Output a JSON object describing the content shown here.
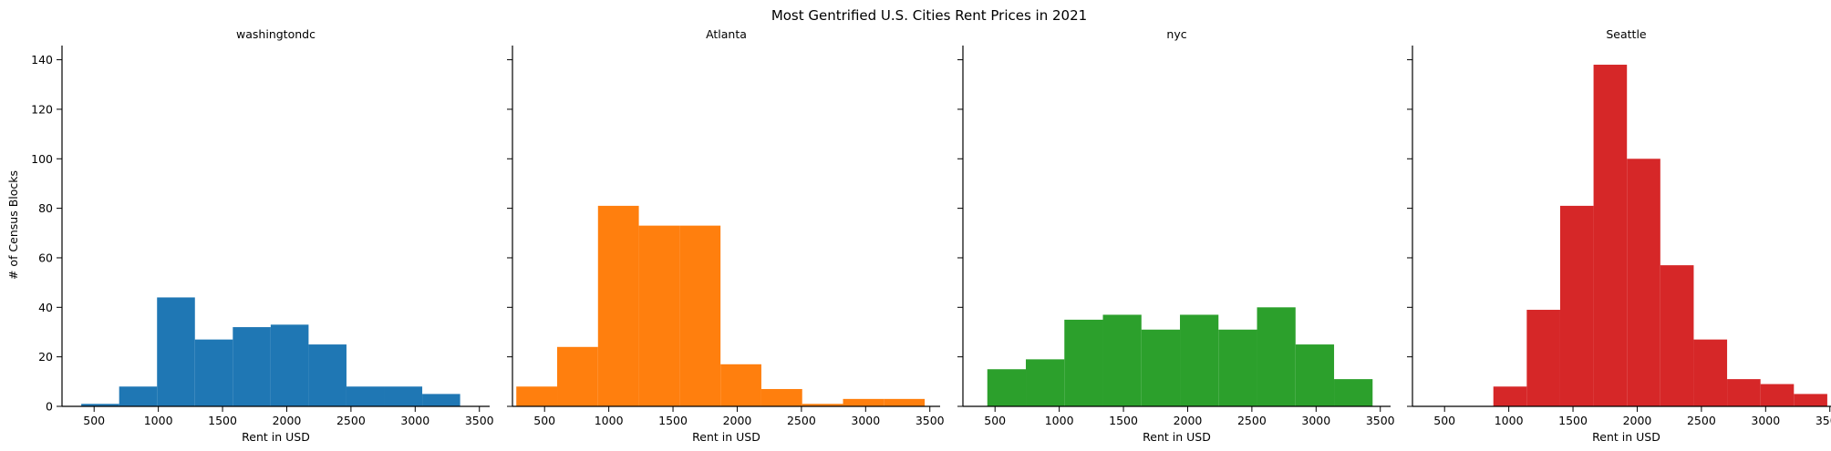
{
  "chart_data": {
    "type": "bar",
    "title": "Most Gentrified U.S. Cities Rent Prices in 2021",
    "xlabel": "Rent in USD",
    "ylabel": "# of Census Blocks",
    "ylim": [
      0,
      145
    ],
    "yticks": [
      0,
      20,
      40,
      60,
      80,
      100,
      120,
      140
    ],
    "xticks": [
      500,
      1000,
      1500,
      2000,
      2500,
      3000,
      3500
    ],
    "xlim": [
      250,
      3580
    ],
    "grid": false,
    "panels": [
      {
        "title": "washingtondc",
        "color": "#1f77b4",
        "bins": [
          {
            "x0": 400,
            "x1": 695,
            "count": 1
          },
          {
            "x0": 695,
            "x1": 990,
            "count": 8
          },
          {
            "x0": 990,
            "x1": 1285,
            "count": 44
          },
          {
            "x0": 1285,
            "x1": 1580,
            "count": 27
          },
          {
            "x0": 1580,
            "x1": 1875,
            "count": 32
          },
          {
            "x0": 1875,
            "x1": 2170,
            "count": 33
          },
          {
            "x0": 2170,
            "x1": 2465,
            "count": 25
          },
          {
            "x0": 2465,
            "x1": 2760,
            "count": 8
          },
          {
            "x0": 2760,
            "x1": 3055,
            "count": 8
          },
          {
            "x0": 3055,
            "x1": 3350,
            "count": 5
          }
        ]
      },
      {
        "title": "Atlanta",
        "color": "#ff7f0e",
        "bins": [
          {
            "x0": 280,
            "x1": 598,
            "count": 8
          },
          {
            "x0": 598,
            "x1": 916,
            "count": 24
          },
          {
            "x0": 916,
            "x1": 1234,
            "count": 81
          },
          {
            "x0": 1234,
            "x1": 1552,
            "count": 73
          },
          {
            "x0": 1552,
            "x1": 1870,
            "count": 73
          },
          {
            "x0": 1870,
            "x1": 2188,
            "count": 17
          },
          {
            "x0": 2188,
            "x1": 2506,
            "count": 7
          },
          {
            "x0": 2506,
            "x1": 2824,
            "count": 1
          },
          {
            "x0": 2824,
            "x1": 3142,
            "count": 3
          },
          {
            "x0": 3142,
            "x1": 3460,
            "count": 3
          }
        ]
      },
      {
        "title": "nyc",
        "color": "#2ca02c",
        "bins": [
          {
            "x0": 440,
            "x1": 740,
            "count": 15
          },
          {
            "x0": 740,
            "x1": 1040,
            "count": 19
          },
          {
            "x0": 1040,
            "x1": 1340,
            "count": 35
          },
          {
            "x0": 1340,
            "x1": 1640,
            "count": 37
          },
          {
            "x0": 1640,
            "x1": 1940,
            "count": 31
          },
          {
            "x0": 1940,
            "x1": 2240,
            "count": 37
          },
          {
            "x0": 2240,
            "x1": 2540,
            "count": 31
          },
          {
            "x0": 2540,
            "x1": 2840,
            "count": 40
          },
          {
            "x0": 2840,
            "x1": 3140,
            "count": 25
          },
          {
            "x0": 3140,
            "x1": 3440,
            "count": 11
          }
        ]
      },
      {
        "title": "Seattle",
        "color": "#d62728",
        "bins": [
          {
            "x0": 880,
            "x1": 1140,
            "count": 8
          },
          {
            "x0": 1140,
            "x1": 1400,
            "count": 39
          },
          {
            "x0": 1400,
            "x1": 1660,
            "count": 81
          },
          {
            "x0": 1660,
            "x1": 1920,
            "count": 138
          },
          {
            "x0": 1920,
            "x1": 2180,
            "count": 100
          },
          {
            "x0": 2180,
            "x1": 2440,
            "count": 57
          },
          {
            "x0": 2440,
            "x1": 2700,
            "count": 27
          },
          {
            "x0": 2700,
            "x1": 2960,
            "count": 11
          },
          {
            "x0": 2960,
            "x1": 3220,
            "count": 9
          },
          {
            "x0": 3220,
            "x1": 3480,
            "count": 5
          }
        ]
      }
    ]
  }
}
